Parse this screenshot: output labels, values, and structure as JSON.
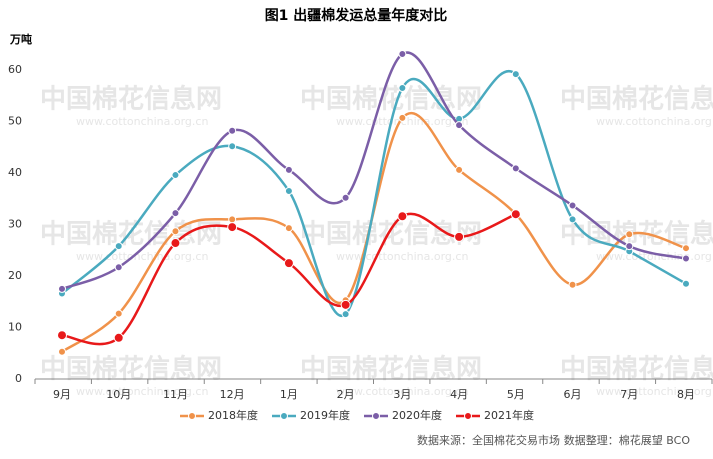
{
  "chart_data": {
    "type": "line",
    "title": "图1 出疆棉发运总量年度对比",
    "y_label": "万吨",
    "categories": [
      "9月",
      "10月",
      "11月",
      "12月",
      "1月",
      "2月",
      "3月",
      "4月",
      "5月",
      "6月",
      "7月",
      "8月"
    ],
    "series": [
      {
        "name": "2018年度",
        "color": "#f0924a",
        "values": [
          5.3,
          12.7,
          28.7,
          31.0,
          29.3,
          15.3,
          50.7,
          40.6,
          32.0,
          18.3,
          28.1,
          25.4
        ]
      },
      {
        "name": "2019年度",
        "color": "#4aaabf",
        "values": [
          16.6,
          25.8,
          39.6,
          45.2,
          36.5,
          12.6,
          56.5,
          50.5,
          59.2,
          31.0,
          24.8,
          18.5
        ]
      },
      {
        "name": "2020年度",
        "color": "#7b5ea7",
        "values": [
          17.5,
          21.7,
          32.2,
          48.2,
          40.6,
          35.2,
          63.1,
          49.3,
          40.9,
          33.7,
          25.8,
          23.4
        ]
      },
      {
        "name": "2021年度",
        "color": "#e8191a",
        "values": [
          8.5,
          8.0,
          26.4,
          29.5,
          22.5,
          14.4,
          31.6,
          27.6,
          32.0,
          null,
          null,
          null
        ]
      }
    ],
    "ylim": [
      0,
      60
    ],
    "yticks": [
      0,
      10,
      20,
      30,
      40,
      50,
      60
    ],
    "smooth": true,
    "legend": "bottom",
    "watermark": "中国棉花信息网",
    "watermark_url": "www.cottonchina.org.cn",
    "source": "数据来源：全国棉花交易市场",
    "compiled_by": "数据整理：棉花展望 BCO"
  }
}
